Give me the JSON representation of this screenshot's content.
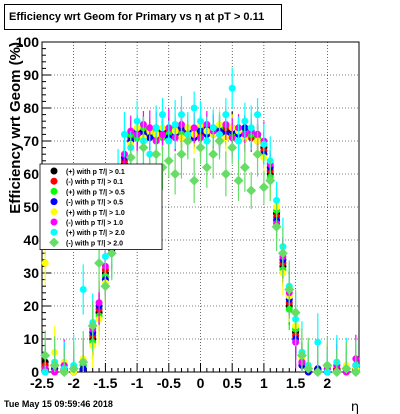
{
  "chart_data": {
    "type": "scatter",
    "title": "Efficiency wrt Geom for Primary vs   η at pT > 0.11",
    "xlabel": "η",
    "ylabel": "Efficiency wrt Geom (%)",
    "xlim": [
      -2.5,
      2.5
    ],
    "ylim": [
      0,
      100
    ],
    "x_ticks": [
      "-2.5",
      "-2",
      "-1.5",
      "-1",
      "-0.5",
      "0",
      "0.5",
      "1",
      "1.5",
      "2"
    ],
    "y_ticks": [
      "0",
      "10",
      "20",
      "30",
      "40",
      "50",
      "60",
      "70",
      "80",
      "90",
      "100"
    ],
    "grid": true,
    "legend_position": "left",
    "timestamp": "Tue May 15 09:59:46 2018",
    "series": [
      {
        "name": "(+) with p T/| > 0.1",
        "color": "#000000",
        "x": [
          -2.45,
          -2.3,
          -2.15,
          -2.0,
          -1.85,
          -1.7,
          -1.6,
          -1.5,
          -1.4,
          -1.3,
          -1.2,
          -1.1,
          -1.0,
          -0.9,
          -0.8,
          -0.7,
          -0.6,
          -0.5,
          -0.4,
          -0.3,
          -0.2,
          -0.1,
          0.0,
          0.1,
          0.2,
          0.3,
          0.4,
          0.5,
          0.6,
          0.7,
          0.8,
          0.9,
          1.0,
          1.1,
          1.2,
          1.3,
          1.4,
          1.5,
          1.6,
          1.7,
          1.85,
          2.0,
          2.15,
          2.3,
          2.45
        ],
        "y": [
          3,
          1,
          0,
          1,
          2,
          10,
          18,
          30,
          37,
          52,
          63,
          70,
          72,
          73,
          72,
          72,
          73,
          72,
          73,
          72,
          73,
          72,
          73,
          74,
          72,
          73,
          73,
          74,
          73,
          72,
          72,
          71,
          68,
          60,
          48,
          32,
          20,
          12,
          3,
          1,
          0,
          1,
          0,
          1,
          2
        ]
      },
      {
        "name": "(-) with p T/| > 0.1",
        "color": "#ff0000",
        "x": [
          -2.45,
          -2.3,
          -2.15,
          -2.0,
          -1.85,
          -1.7,
          -1.6,
          -1.5,
          -1.4,
          -1.3,
          -1.2,
          -1.1,
          -1.0,
          -0.9,
          -0.8,
          -0.7,
          -0.6,
          -0.5,
          -0.4,
          -0.3,
          -0.2,
          -0.1,
          0.0,
          0.1,
          0.2,
          0.3,
          0.4,
          0.5,
          0.6,
          0.7,
          0.8,
          0.9,
          1.0,
          1.1,
          1.2,
          1.3,
          1.4,
          1.5,
          1.6,
          1.7,
          1.85,
          2.0,
          2.15,
          2.3,
          2.45
        ],
        "y": [
          2,
          0,
          1,
          0,
          3,
          11,
          19,
          31,
          38,
          53,
          64,
          71,
          73,
          72,
          73,
          71,
          72,
          73,
          72,
          73,
          72,
          73,
          72,
          73,
          73,
          72,
          74,
          73,
          72,
          73,
          71,
          70,
          67,
          61,
          47,
          33,
          21,
          11,
          2,
          0,
          1,
          0,
          1,
          0,
          1
        ]
      },
      {
        "name": "(+) with p T/| > 0.5",
        "color": "#00ff00",
        "x": [
          -2.45,
          -2.3,
          -2.15,
          -2.0,
          -1.85,
          -1.7,
          -1.6,
          -1.5,
          -1.4,
          -1.3,
          -1.2,
          -1.1,
          -1.0,
          -0.9,
          -0.8,
          -0.7,
          -0.6,
          -0.5,
          -0.4,
          -0.3,
          -0.2,
          -0.1,
          0.0,
          0.1,
          0.2,
          0.3,
          0.4,
          0.5,
          0.6,
          0.7,
          0.8,
          0.9,
          1.0,
          1.1,
          1.2,
          1.3,
          1.4,
          1.5,
          1.6,
          1.7,
          1.85,
          2.0,
          2.15,
          2.3,
          2.45
        ],
        "y": [
          1,
          2,
          0,
          1,
          2,
          9,
          17,
          29,
          39,
          51,
          62,
          72,
          71,
          74,
          72,
          73,
          71,
          72,
          74,
          72,
          72,
          73,
          74,
          72,
          73,
          74,
          72,
          72,
          74,
          73,
          72,
          71,
          69,
          59,
          49,
          31,
          19,
          13,
          3,
          1,
          0,
          2,
          0,
          1,
          0
        ]
      },
      {
        "name": "(-) with p T/| > 0.5",
        "color": "#0000ff",
        "x": [
          -2.45,
          -2.3,
          -2.15,
          -2.0,
          -1.85,
          -1.7,
          -1.6,
          -1.5,
          -1.4,
          -1.3,
          -1.2,
          -1.1,
          -1.0,
          -0.9,
          -0.8,
          -0.7,
          -0.6,
          -0.5,
          -0.4,
          -0.3,
          -0.2,
          -0.1,
          0.0,
          0.1,
          0.2,
          0.3,
          0.4,
          0.5,
          0.6,
          0.7,
          0.8,
          0.9,
          1.0,
          1.1,
          1.2,
          1.3,
          1.4,
          1.5,
          1.6,
          1.7,
          1.85,
          2.0,
          2.15,
          2.3,
          2.45
        ],
        "y": [
          0,
          1,
          2,
          0,
          1,
          12,
          20,
          28,
          36,
          54,
          65,
          70,
          73,
          72,
          71,
          74,
          73,
          71,
          72,
          74,
          73,
          71,
          73,
          72,
          74,
          73,
          72,
          73,
          72,
          74,
          73,
          72,
          66,
          62,
          46,
          34,
          22,
          10,
          2,
          0,
          1,
          0,
          2,
          1,
          0
        ]
      },
      {
        "name": "(+) with p T/| > 1.0",
        "color": "#ffff00",
        "x": [
          -2.45,
          -2.3,
          -2.15,
          -2.0,
          -1.85,
          -1.7,
          -1.6,
          -1.5,
          -1.4,
          -1.3,
          -1.2,
          -1.1,
          -1.0,
          -0.9,
          -0.8,
          -0.7,
          -0.6,
          -0.5,
          -0.4,
          -0.3,
          -0.2,
          -0.1,
          0.0,
          0.1,
          0.2,
          0.3,
          0.4,
          0.5,
          0.6,
          0.7,
          0.8,
          0.9,
          1.0,
          1.1,
          1.2,
          1.3,
          1.4,
          1.5,
          1.6,
          1.7,
          1.85,
          2.0,
          2.15,
          2.3,
          2.45
        ],
        "y": [
          33,
          6,
          3,
          0,
          4,
          8,
          16,
          27,
          40,
          50,
          61,
          69,
          74,
          71,
          73,
          72,
          74,
          70,
          73,
          71,
          74,
          72,
          75,
          73,
          72,
          75,
          71,
          74,
          73,
          71,
          74,
          70,
          65,
          58,
          50,
          30,
          23,
          14,
          4,
          2,
          0,
          1,
          0,
          2,
          1
        ]
      },
      {
        "name": "(-) with p T/| > 1.0",
        "color": "#ff00ff",
        "x": [
          -2.45,
          -2.3,
          -2.15,
          -2.0,
          -1.85,
          -1.7,
          -1.6,
          -1.5,
          -1.4,
          -1.3,
          -1.2,
          -1.1,
          -1.0,
          -0.9,
          -0.8,
          -0.7,
          -0.6,
          -0.5,
          -0.4,
          -0.3,
          -0.2,
          -0.1,
          0.0,
          0.1,
          0.2,
          0.3,
          0.4,
          0.5,
          0.6,
          0.7,
          0.8,
          0.9,
          1.0,
          1.1,
          1.2,
          1.3,
          1.4,
          1.5,
          1.6,
          1.7,
          1.85,
          2.0,
          2.15,
          2.3,
          2.45
        ],
        "y": [
          1,
          0,
          2,
          1,
          3,
          13,
          21,
          32,
          41,
          55,
          66,
          73,
          72,
          75,
          74,
          70,
          72,
          74,
          71,
          75,
          70,
          74,
          71,
          75,
          73,
          70,
          75,
          71,
          74,
          72,
          73,
          72,
          70,
          63,
          45,
          35,
          24,
          9,
          3,
          1,
          0,
          1,
          2,
          0,
          4
        ]
      },
      {
        "name": "(+) with p T/| > 2.0",
        "color": "#00ffff",
        "x": [
          -2.45,
          -2.3,
          -2.15,
          -2.0,
          -1.85,
          -1.7,
          -1.6,
          -1.5,
          -1.4,
          -1.3,
          -1.2,
          -1.1,
          -1.0,
          -0.9,
          -0.8,
          -0.7,
          -0.6,
          -0.5,
          -0.4,
          -0.3,
          -0.2,
          -0.1,
          0.0,
          0.1,
          0.2,
          0.3,
          0.4,
          0.5,
          0.6,
          0.7,
          0.8,
          0.9,
          1.0,
          1.1,
          1.2,
          1.3,
          1.4,
          1.5,
          1.6,
          1.7,
          1.85,
          2.0,
          2.15,
          2.3,
          2.45
        ],
        "y": [
          0,
          3,
          1,
          2,
          25,
          15,
          40,
          35,
          38,
          60,
          72,
          68,
          76,
          70,
          66,
          74,
          78,
          70,
          75,
          78,
          72,
          80,
          76,
          70,
          74,
          72,
          78,
          86,
          70,
          76,
          74,
          78,
          69,
          64,
          52,
          38,
          26,
          16,
          6,
          2,
          9,
          0,
          3,
          1,
          2
        ]
      },
      {
        "name": "(-) with p T/| > 2.0",
        "color": "#66dd66",
        "x": [
          -2.45,
          -2.3,
          -2.15,
          -2.0,
          -1.85,
          -1.7,
          -1.6,
          -1.5,
          -1.4,
          -1.3,
          -1.2,
          -1.1,
          -1.0,
          -0.9,
          -0.8,
          -0.7,
          -0.6,
          -0.5,
          -0.4,
          -0.3,
          -0.2,
          -0.1,
          0.0,
          0.1,
          0.2,
          0.3,
          0.4,
          0.5,
          0.6,
          0.7,
          0.8,
          0.9,
          1.0,
          1.1,
          1.2,
          1.3,
          1.4,
          1.5,
          1.6,
          1.7,
          1.85,
          2.0,
          2.15,
          2.3,
          2.45
        ],
        "y": [
          5,
          2,
          0,
          1,
          3,
          14,
          33,
          26,
          36,
          48,
          57,
          65,
          62,
          68,
          58,
          66,
          62,
          64,
          60,
          66,
          70,
          58,
          68,
          62,
          66,
          70,
          60,
          68,
          58,
          62,
          55,
          66,
          56,
          58,
          44,
          36,
          25,
          18,
          5,
          1,
          0,
          2,
          0,
          1,
          0
        ]
      }
    ]
  }
}
